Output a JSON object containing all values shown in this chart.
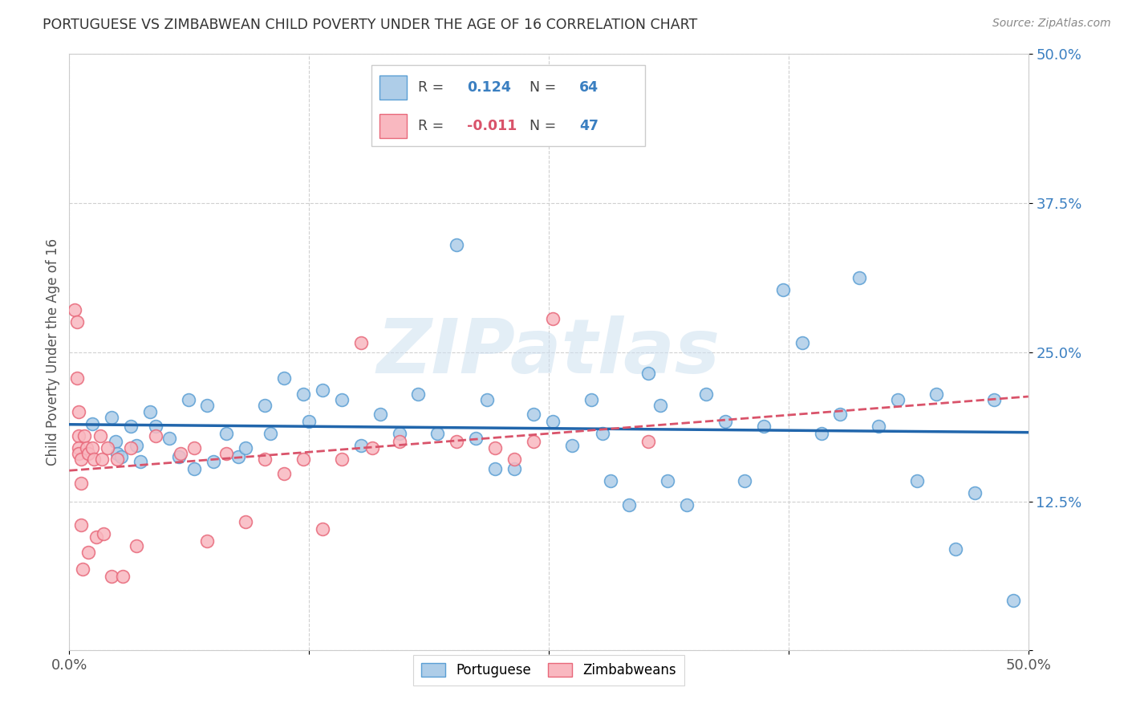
{
  "title": "PORTUGUESE VS ZIMBABWEAN CHILD POVERTY UNDER THE AGE OF 16 CORRELATION CHART",
  "source": "Source: ZipAtlas.com",
  "ylabel": "Child Poverty Under the Age of 16",
  "xlim": [
    0.0,
    0.5
  ],
  "ylim": [
    0.0,
    0.5
  ],
  "xticks": [
    0.0,
    0.125,
    0.25,
    0.375,
    0.5
  ],
  "yticks": [
    0.0,
    0.125,
    0.25,
    0.375,
    0.5
  ],
  "xticklabels": [
    "0.0%",
    "",
    "",
    "",
    "50.0%"
  ],
  "yticklabels": [
    "",
    "12.5%",
    "25.0%",
    "37.5%",
    "50.0%"
  ],
  "portuguese_color": "#aecde8",
  "zimbabwean_color": "#f9b8c0",
  "portuguese_edge": "#5b9fd4",
  "zimbabwean_edge": "#e8687a",
  "portuguese_R": "0.124",
  "portuguese_N": "64",
  "zimbabwean_R": "-0.011",
  "zimbabwean_N": "47",
  "trend_portuguese_color": "#2166ac",
  "trend_zimbabwean_color": "#d9536a",
  "background_color": "#ffffff",
  "grid_color": "#d0d0d0",
  "watermark": "ZIPatlas",
  "portuguese_x": [
    0.012,
    0.022,
    0.024,
    0.025,
    0.027,
    0.032,
    0.035,
    0.037,
    0.042,
    0.045,
    0.052,
    0.057,
    0.062,
    0.065,
    0.072,
    0.075,
    0.082,
    0.088,
    0.092,
    0.102,
    0.105,
    0.112,
    0.122,
    0.125,
    0.132,
    0.142,
    0.152,
    0.162,
    0.172,
    0.182,
    0.192,
    0.202,
    0.212,
    0.218,
    0.222,
    0.232,
    0.242,
    0.252,
    0.262,
    0.272,
    0.278,
    0.282,
    0.292,
    0.302,
    0.308,
    0.312,
    0.322,
    0.332,
    0.342,
    0.352,
    0.362,
    0.372,
    0.382,
    0.392,
    0.402,
    0.412,
    0.422,
    0.432,
    0.442,
    0.452,
    0.462,
    0.472,
    0.482,
    0.492
  ],
  "portuguese_y": [
    0.19,
    0.195,
    0.175,
    0.165,
    0.162,
    0.188,
    0.172,
    0.158,
    0.2,
    0.188,
    0.178,
    0.162,
    0.21,
    0.152,
    0.205,
    0.158,
    0.182,
    0.162,
    0.17,
    0.205,
    0.182,
    0.228,
    0.215,
    0.192,
    0.218,
    0.21,
    0.172,
    0.198,
    0.182,
    0.215,
    0.182,
    0.34,
    0.178,
    0.21,
    0.152,
    0.152,
    0.198,
    0.192,
    0.172,
    0.21,
    0.182,
    0.142,
    0.122,
    0.232,
    0.205,
    0.142,
    0.122,
    0.215,
    0.192,
    0.142,
    0.188,
    0.302,
    0.258,
    0.182,
    0.198,
    0.312,
    0.188,
    0.21,
    0.142,
    0.215,
    0.085,
    0.132,
    0.21,
    0.042
  ],
  "zimbabwean_x": [
    0.003,
    0.004,
    0.004,
    0.005,
    0.005,
    0.005,
    0.005,
    0.006,
    0.006,
    0.006,
    0.007,
    0.008,
    0.009,
    0.01,
    0.01,
    0.012,
    0.013,
    0.014,
    0.016,
    0.017,
    0.018,
    0.02,
    0.022,
    0.025,
    0.028,
    0.032,
    0.035,
    0.045,
    0.058,
    0.065,
    0.072,
    0.082,
    0.092,
    0.102,
    0.112,
    0.122,
    0.132,
    0.142,
    0.152,
    0.158,
    0.172,
    0.202,
    0.222,
    0.232,
    0.242,
    0.252,
    0.302
  ],
  "zimbabwean_y": [
    0.285,
    0.275,
    0.228,
    0.2,
    0.18,
    0.17,
    0.165,
    0.16,
    0.14,
    0.105,
    0.068,
    0.18,
    0.17,
    0.165,
    0.082,
    0.17,
    0.16,
    0.095,
    0.18,
    0.16,
    0.098,
    0.17,
    0.062,
    0.16,
    0.062,
    0.17,
    0.088,
    0.18,
    0.165,
    0.17,
    0.092,
    0.165,
    0.108,
    0.16,
    0.148,
    0.16,
    0.102,
    0.16,
    0.258,
    0.17,
    0.175,
    0.175,
    0.17,
    0.16,
    0.175,
    0.278,
    0.175
  ]
}
